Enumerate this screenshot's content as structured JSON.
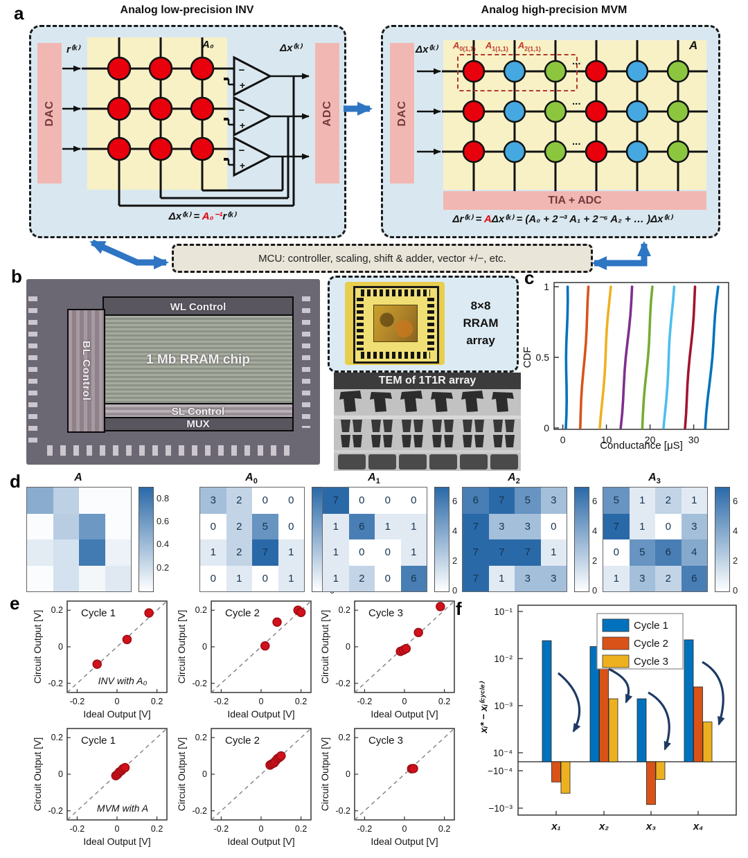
{
  "panel_a": {
    "label": "a",
    "left": {
      "title": "Analog low-precision INV",
      "dac": "DAC",
      "adc": "ADC",
      "input_label": "r⁽ᵏ⁾",
      "matrix_label": "A₀",
      "output_label": "Δx⁽ᵏ⁾",
      "formula": {
        "pre": "Δx⁽ᵏ⁾ = ",
        "red": "A₀⁻¹",
        "post": "r⁽ᵏ⁾"
      },
      "grid": {
        "rows": 3,
        "cols": 3,
        "cell_color": "#e8000c"
      }
    },
    "right": {
      "title": "Analog high-precision MVM",
      "dac": "DAC",
      "input_label": "Δx⁽ᵏ⁾",
      "matrix_label": "A",
      "tia": "TIA + ADC",
      "dots": "...",
      "slices": [
        {
          "base": "A",
          "sub": "0(1,1)"
        },
        {
          "base": "A",
          "sub": "1(1,1)"
        },
        {
          "base": "A",
          "sub": "2(1,1)"
        }
      ],
      "formula": {
        "pre": "Δr⁽ᵏ⁾ = ",
        "red": "A",
        "post": "Δx⁽ᵏ⁾ = (A₀ + 2⁻³ A₁ + 2⁻⁶ A₂ + … )Δx⁽ᵏ⁾"
      },
      "grid": {
        "rows": 3,
        "cols": 6,
        "col_colors": [
          "#e8000c",
          "#45a8e0",
          "#8cc63f",
          "#e8000c",
          "#45a8e0",
          "#8cc63f"
        ]
      }
    },
    "mcu": "MCU: controller, scaling, shift & adder, vector +/−, etc."
  },
  "panel_b": {
    "label": "b",
    "wl": "WL Control",
    "bl": "BL Control",
    "chip": "1 Mb RRAM chip",
    "sl": "SL Control",
    "mux": "MUX",
    "package_lines": [
      "8×8",
      "RRAM",
      "array"
    ],
    "tem_title": "TEM of 1T1R array"
  },
  "panel_c": {
    "label": "c"
  },
  "panel_d": {
    "label": "d"
  },
  "panel_e": {
    "label": "e"
  },
  "panel_f": {
    "label": "f"
  },
  "chart_data": [
    {
      "id": "cdf",
      "type": "line",
      "title": "",
      "xlabel": "Conductance [μS]",
      "ylabel": "CDF",
      "xlim": [
        -2,
        38
      ],
      "ylim": [
        0,
        1
      ],
      "xticks": [
        0,
        10,
        20,
        30
      ],
      "yticks": [
        0,
        0.5,
        1
      ],
      "grid": false,
      "legend_position": "none",
      "series": [
        {
          "name": "level 1",
          "color": "#0072BD",
          "x_at_cdf0": 0.7,
          "x_at_cdf1": 1.05
        },
        {
          "name": "level 2",
          "color": "#D95319",
          "x_at_cdf0": 3.9,
          "x_at_cdf1": 6.0
        },
        {
          "name": "level 3",
          "color": "#EDB120",
          "x_at_cdf0": 8.6,
          "x_at_cdf1": 10.9
        },
        {
          "name": "level 4",
          "color": "#7E2F8E",
          "x_at_cdf0": 13.2,
          "x_at_cdf1": 15.9
        },
        {
          "name": "level 5",
          "color": "#77AC30",
          "x_at_cdf0": 18.2,
          "x_at_cdf1": 20.6
        },
        {
          "name": "level 6",
          "color": "#4DBEEE",
          "x_at_cdf0": 23.2,
          "x_at_cdf1": 25.4
        },
        {
          "name": "level 7",
          "color": "#A2142F",
          "x_at_cdf0": 27.9,
          "x_at_cdf1": 30.4
        },
        {
          "name": "level 8",
          "color": "#0072BD",
          "x_at_cdf0": 32.7,
          "x_at_cdf1": 35.6
        }
      ]
    },
    {
      "id": "A",
      "type": "heatmap",
      "title_base": "A",
      "title_sub": "",
      "show_values": false,
      "vmax": 0.9,
      "colorbar_ticks": [
        0.2,
        0.4,
        0.6,
        0.8
      ],
      "matrix": [
        [
          0.5,
          0.28,
          0.02,
          0.02
        ],
        [
          0.02,
          0.3,
          0.62,
          0.02
        ],
        [
          0.12,
          0.18,
          0.8,
          0.08
        ],
        [
          0.02,
          0.18,
          0.05,
          0.13
        ]
      ]
    },
    {
      "id": "A0",
      "type": "heatmap",
      "title_base": "A",
      "title_sub": "0",
      "show_values": true,
      "vmax": 7,
      "colorbar_ticks": [
        0,
        2,
        4,
        6
      ],
      "matrix": [
        [
          3,
          2,
          0,
          0
        ],
        [
          0,
          2,
          5,
          0
        ],
        [
          1,
          2,
          7,
          1
        ],
        [
          0,
          1,
          0,
          1
        ]
      ]
    },
    {
      "id": "A1",
      "type": "heatmap",
      "title_base": "A",
      "title_sub": "1",
      "show_values": true,
      "vmax": 7,
      "colorbar_ticks": [
        0,
        2,
        4,
        6
      ],
      "matrix": [
        [
          7,
          0,
          0,
          0
        ],
        [
          1,
          6,
          1,
          1
        ],
        [
          1,
          0,
          0,
          1
        ],
        [
          1,
          2,
          0,
          6
        ]
      ]
    },
    {
      "id": "A2",
      "type": "heatmap",
      "title_base": "A",
      "title_sub": "2",
      "show_values": true,
      "vmax": 7,
      "colorbar_ticks": [
        0,
        2,
        4,
        6
      ],
      "matrix": [
        [
          6,
          7,
          5,
          3
        ],
        [
          7,
          3,
          3,
          0
        ],
        [
          7,
          7,
          7,
          1
        ],
        [
          7,
          1,
          3,
          3
        ]
      ]
    },
    {
      "id": "A3",
      "type": "heatmap",
      "title_base": "A",
      "title_sub": "3",
      "show_values": true,
      "vmax": 7,
      "colorbar_ticks": [
        0,
        2,
        4,
        6
      ],
      "matrix": [
        [
          5,
          1,
          2,
          1
        ],
        [
          7,
          1,
          0,
          3
        ],
        [
          0,
          5,
          6,
          4
        ],
        [
          1,
          3,
          2,
          6
        ]
      ]
    },
    {
      "id": "inv1",
      "type": "scatter",
      "title": "Cycle 1",
      "annotation": "INV with A₀",
      "xlabel": "Ideal Output [V]",
      "ylabel": "Circuit Output [V]",
      "xlim": [
        -0.25,
        0.25
      ],
      "ylim": [
        -0.25,
        0.25
      ],
      "ticks": [
        -0.2,
        0,
        0.2
      ],
      "point_color": "#d1111b",
      "points": [
        [
          -0.1,
          -0.095
        ],
        [
          0.05,
          0.04
        ],
        [
          0.16,
          0.185
        ]
      ]
    },
    {
      "id": "inv2",
      "type": "scatter",
      "title": "Cycle 2",
      "annotation": "",
      "xlabel": "Ideal Output [V]",
      "ylabel": "Circuit Output [V]",
      "xlim": [
        -0.25,
        0.25
      ],
      "ylim": [
        -0.25,
        0.25
      ],
      "ticks": [
        -0.2,
        0,
        0.2
      ],
      "point_color": "#d1111b",
      "points": [
        [
          0.02,
          0.005
        ],
        [
          0.08,
          0.135
        ],
        [
          0.185,
          0.2
        ],
        [
          0.2,
          0.188
        ]
      ]
    },
    {
      "id": "inv3",
      "type": "scatter",
      "title": "Cycle 3",
      "annotation": "",
      "xlabel": "Ideal Output [V]",
      "ylabel": "Circuit Output [V]",
      "xlim": [
        -0.25,
        0.25
      ],
      "ylim": [
        -0.25,
        0.25
      ],
      "ticks": [
        -0.2,
        0,
        0.2
      ],
      "point_color": "#d1111b",
      "points": [
        [
          -0.02,
          -0.025
        ],
        [
          -0.005,
          -0.018
        ],
        [
          0.008,
          -0.01
        ],
        [
          0.07,
          0.078
        ],
        [
          0.18,
          0.22
        ]
      ]
    },
    {
      "id": "mvm1",
      "type": "scatter",
      "title": "Cycle 1",
      "annotation": "MVM with A",
      "xlabel": "Ideal Output [V]",
      "ylabel": "Circuit Output [V]",
      "xlim": [
        -0.25,
        0.25
      ],
      "ylim": [
        -0.25,
        0.25
      ],
      "ticks": [
        -0.2,
        0,
        0.2
      ],
      "point_color": "#d1111b",
      "points": [
        [
          -0.006,
          -0.008
        ],
        [
          0.003,
          0.0
        ],
        [
          0.012,
          0.012
        ],
        [
          0.022,
          0.02
        ],
        [
          0.03,
          0.03
        ],
        [
          0.04,
          0.036
        ]
      ]
    },
    {
      "id": "mvm2",
      "type": "scatter",
      "title": "Cycle 2",
      "annotation": "",
      "xlabel": "Ideal Output [V]",
      "ylabel": "Circuit Output [V]",
      "xlim": [
        -0.25,
        0.25
      ],
      "ylim": [
        -0.25,
        0.25
      ],
      "ticks": [
        -0.2,
        0,
        0.2
      ],
      "point_color": "#d1111b",
      "points": [
        [
          0.045,
          0.05
        ],
        [
          0.055,
          0.057
        ],
        [
          0.065,
          0.062
        ],
        [
          0.072,
          0.072
        ],
        [
          0.082,
          0.085
        ],
        [
          0.092,
          0.092
        ],
        [
          0.1,
          0.1
        ]
      ]
    },
    {
      "id": "mvm3",
      "type": "scatter",
      "title": "Cycle 3",
      "annotation": "",
      "xlabel": "Ideal Output [V]",
      "ylabel": "Circuit Output [V]",
      "xlim": [
        -0.25,
        0.25
      ],
      "ylim": [
        -0.25,
        0.25
      ],
      "ticks": [
        -0.2,
        0,
        0.2
      ],
      "point_color": "#d1111b",
      "points": [
        [
          0.036,
          0.03
        ],
        [
          0.045,
          0.031
        ]
      ]
    },
    {
      "id": "errbar",
      "type": "bar",
      "scale": "symlog",
      "categories": [
        "x₁",
        "x₂",
        "x₃",
        "x₄"
      ],
      "ylabel": "xᵢ* − xᵢ⁽ᶜʸᶜˡᵉ⁾",
      "ytick_labels": [
        "10⁻¹",
        "10⁻²",
        "10⁻³",
        "10⁻⁴",
        "−10⁻⁴",
        "−10⁻³"
      ],
      "legend_position": "top-right",
      "series": [
        {
          "name": "Cycle 1",
          "color": "#0072BD",
          "values": [
            0.024,
            0.018,
            0.0014,
            0.025
          ]
        },
        {
          "name": "Cycle 2",
          "color": "#D95319",
          "values": [
            -0.0002,
            0.0068,
            -0.0008,
            0.0025
          ]
        },
        {
          "name": "Cycle 3",
          "color": "#EDB120",
          "values": [
            -0.0004,
            0.0014,
            -0.00017,
            0.00045
          ]
        }
      ]
    }
  ]
}
